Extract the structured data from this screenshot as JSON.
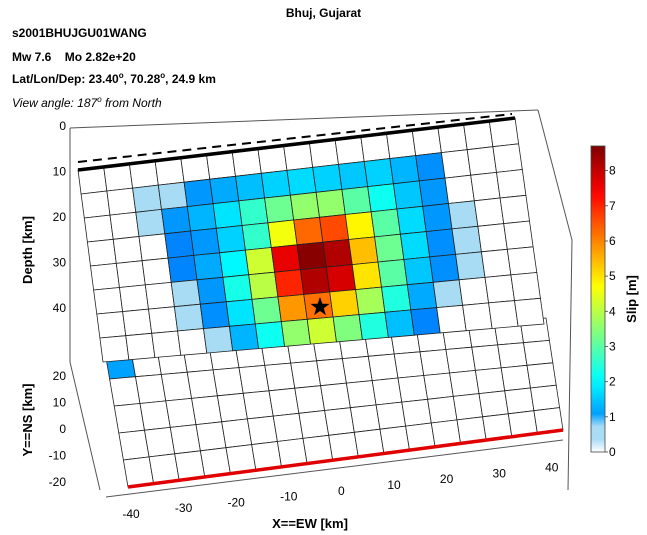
{
  "header": {
    "title": "Bhuj, Gujarat",
    "event_id": "s2001BHUJGU01WANG",
    "mw_label": "Mw 7.6",
    "mo_label": "Mo 2.82e+20",
    "loc_prefix": "Lat/Lon/Dep: 23.40",
    "loc_lat_sup": "o",
    "loc_mid": ", 70.28",
    "loc_lon_sup": "o",
    "loc_suffix": ", 24.9 km",
    "view_prefix": "View angle: 187",
    "view_sup": "o",
    "view_suffix": " from North"
  },
  "chart_data": {
    "type": "heatmap",
    "colormap": "jet-white-low",
    "colorbar": {
      "label": "Slip [m]",
      "range": [
        0,
        8.7
      ],
      "ticks": [
        "0",
        "1",
        "2",
        "3",
        "4",
        "5",
        "6",
        "7",
        "8"
      ]
    },
    "fault_plane": {
      "ylabel": "Depth [km]",
      "depth_ticks": [
        "0",
        "10",
        "20",
        "30",
        "40"
      ],
      "rows": 8,
      "cols": 17,
      "slip": [
        [
          0.0,
          0.0,
          0.0,
          0.0,
          0.0,
          0.0,
          0.0,
          0.0,
          0.0,
          0.0,
          0.0,
          0.0,
          0.0,
          0.0,
          0.0,
          0.0,
          0.0
        ],
        [
          0.0,
          0.0,
          0.5,
          0.7,
          1.0,
          1.2,
          1.4,
          1.6,
          1.7,
          1.6,
          1.5,
          1.6,
          1.3,
          0.9,
          0.0,
          0.0,
          0.0
        ],
        [
          0.0,
          0.0,
          0.5,
          1.0,
          1.3,
          1.8,
          2.6,
          3.2,
          3.6,
          3.6,
          3.0,
          2.2,
          1.5,
          1.0,
          0.0,
          0.0,
          0.0
        ],
        [
          0.0,
          0.0,
          0.0,
          0.8,
          1.0,
          1.6,
          2.6,
          4.6,
          6.3,
          6.6,
          4.8,
          3.0,
          1.7,
          1.0,
          0.7,
          0.0,
          0.0
        ],
        [
          0.0,
          0.0,
          0.0,
          0.8,
          1.2,
          2.0,
          4.2,
          7.6,
          8.6,
          8.2,
          5.4,
          3.2,
          1.7,
          0.9,
          0.6,
          0.0,
          0.0
        ],
        [
          0.0,
          0.0,
          0.0,
          0.6,
          1.0,
          2.3,
          4.0,
          7.0,
          8.2,
          7.8,
          5.0,
          3.0,
          1.5,
          0.9,
          0.5,
          0.0,
          0.0
        ],
        [
          0.0,
          0.0,
          0.0,
          0.5,
          0.9,
          1.8,
          3.2,
          5.8,
          6.2,
          5.2,
          3.8,
          2.4,
          1.2,
          0.7,
          0.0,
          0.0,
          0.0
        ],
        [
          0.0,
          0.0,
          0.0,
          0.0,
          0.7,
          1.3,
          2.2,
          3.6,
          4.2,
          3.4,
          2.4,
          1.4,
          0.8,
          0.0,
          0.0,
          0.0,
          0.0
        ]
      ]
    },
    "surface_projection": {
      "xlabel": "X==EW [km]",
      "ylabel": "Y==NS [km]",
      "x_ticks": [
        "-40",
        "-30",
        "-20",
        "-10",
        "0",
        "10",
        "20",
        "30",
        "40"
      ],
      "y_ticks": [
        "20",
        "10",
        "0",
        "-10",
        "-20"
      ],
      "rows": 5,
      "cols": 17,
      "slip": [
        [
          1.1,
          0.0,
          0.0,
          0.0,
          0.0,
          0.0,
          0.0,
          0.0,
          0.0,
          0.0,
          0.0,
          0.0,
          0.0,
          0.0,
          0.0,
          0.0,
          0.0
        ],
        [
          0.0,
          0.0,
          0.0,
          0.0,
          0.0,
          0.0,
          0.0,
          0.0,
          0.0,
          0.0,
          0.0,
          0.0,
          0.0,
          0.0,
          0.0,
          0.0,
          0.0
        ],
        [
          0.0,
          0.0,
          0.0,
          0.0,
          0.0,
          0.0,
          0.0,
          0.0,
          0.0,
          0.0,
          0.0,
          0.0,
          0.0,
          0.0,
          0.0,
          0.0,
          0.0
        ],
        [
          0.0,
          0.0,
          0.0,
          0.0,
          0.0,
          0.0,
          0.0,
          0.0,
          0.0,
          0.0,
          0.0,
          0.0,
          0.0,
          0.0,
          0.0,
          0.0,
          0.0
        ],
        [
          0.0,
          0.0,
          0.0,
          0.0,
          0.0,
          0.0,
          0.0,
          0.0,
          0.0,
          0.0,
          0.0,
          0.0,
          0.0,
          0.0,
          0.0,
          0.0,
          0.0
        ]
      ]
    }
  }
}
